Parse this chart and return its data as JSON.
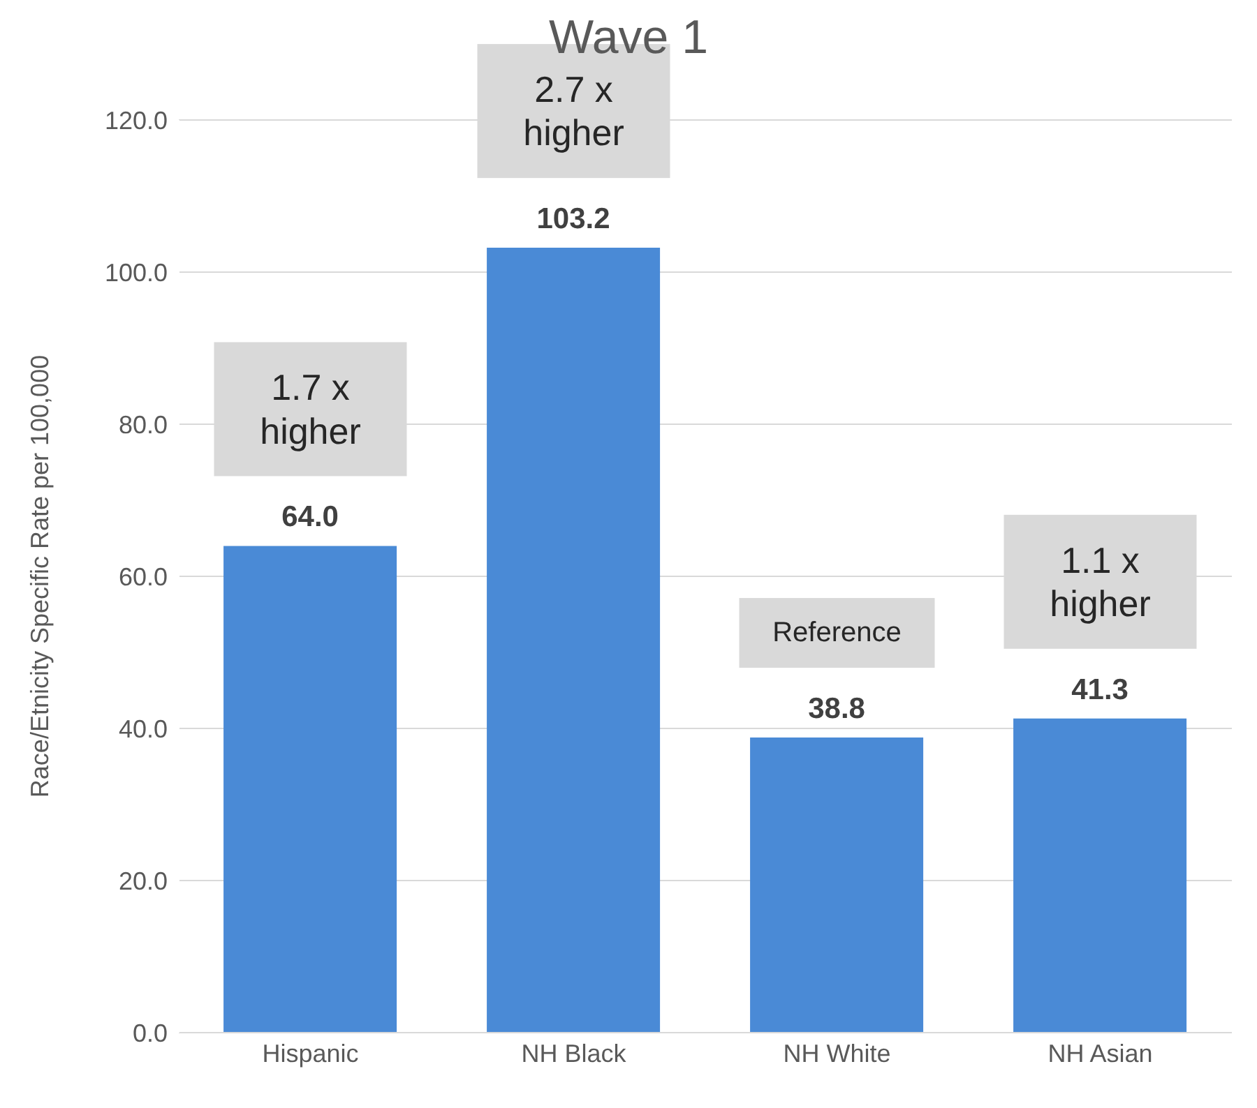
{
  "chart_data": {
    "type": "bar",
    "title": "Wave 1",
    "ylabel": "Race/Etnicity Specific Rate per 100,000",
    "categories": [
      "Hispanic",
      "NH Black",
      "NH White",
      "NH Asian"
    ],
    "values": [
      64.0,
      103.2,
      38.8,
      41.3
    ],
    "color": "#4a8ad6",
    "value_labels": [
      "64.0",
      "103.2",
      "38.8",
      "41.3"
    ],
    "ylim": [
      0,
      120
    ],
    "yticks": [
      {
        "value": 0,
        "label": "0.0"
      },
      {
        "value": 20,
        "label": "20.0"
      },
      {
        "value": 40,
        "label": "40.0"
      },
      {
        "value": 60,
        "label": "60.0"
      },
      {
        "value": 80,
        "label": "80.0"
      },
      {
        "value": 100,
        "label": "100.0"
      },
      {
        "value": 120,
        "label": "120.0"
      }
    ],
    "grid": "y",
    "annotations": [
      "1.7 x higher",
      "2.7 x higher",
      "Reference",
      "1.1 x higher"
    ]
  }
}
